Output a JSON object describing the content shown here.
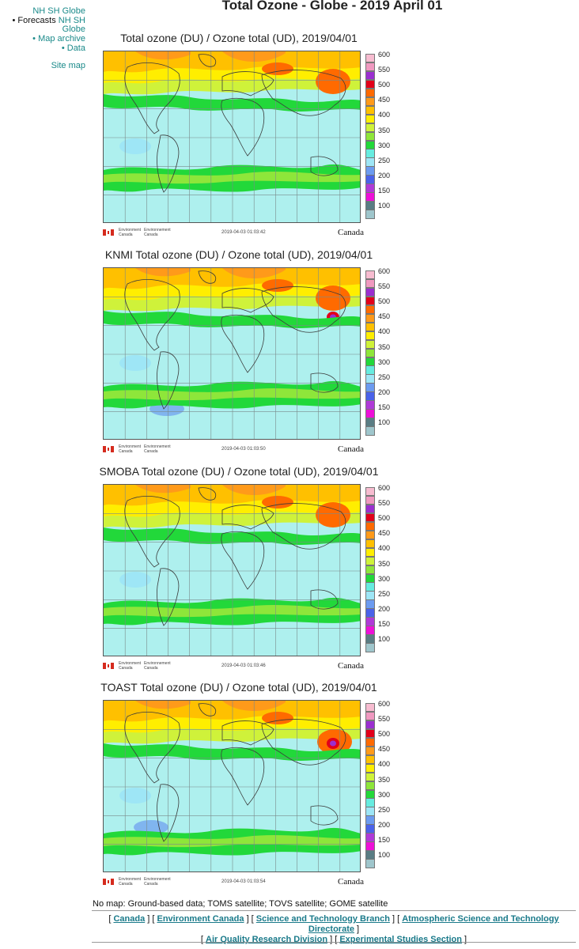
{
  "page": {
    "title": "Total Ozone - Globe - 2019 April 01"
  },
  "sidenav": {
    "hemispheres_top": "NH SH Globe",
    "forecasts_label": "Forecasts",
    "forecasts_links": "NH SH",
    "forecasts_globe": "Globe",
    "map_archive": "Map archive",
    "data": "Data",
    "site_map": "Site map"
  },
  "legend": {
    "labels": [
      "600",
      "550",
      "500",
      "450",
      "400",
      "350",
      "300",
      "250",
      "200",
      "150",
      "100"
    ],
    "colors": [
      "#f7bcd0",
      "#f099c0",
      "#9b2fd0",
      "#e2001a",
      "#ff6a00",
      "#ff9a1a",
      "#ffc000",
      "#ffee00",
      "#cff23a",
      "#8ee63a",
      "#22d83a",
      "#66ece0",
      "#9ee6f6",
      "#6c9bf0",
      "#4a62ea",
      "#b03ad8",
      "#ee10d8",
      "#5a7d84",
      "#9fc6cc"
    ]
  },
  "panels": [
    {
      "title": "Total ozone (DU) / Ozone total (UD), 2019/04/01",
      "timestamp": "2019-04-03 01:03:42"
    },
    {
      "title": "KNMI Total ozone (DU) / Ozone total (UD), 2019/04/01",
      "timestamp": "2019-04-03 01:03:50"
    },
    {
      "title": "SMOBA Total ozone (DU) / Ozone total (UD), 2019/04/01",
      "timestamp": "2019-04-03 01:03:46"
    },
    {
      "title": "TOAST Total ozone (DU) / Ozone total (UD), 2019/04/01",
      "timestamp": "2019-04-03 01:03:54"
    }
  ],
  "branding": {
    "env_en_1": "Environment",
    "env_en_2": "Canada",
    "env_fr_1": "Environnement",
    "env_fr_2": "Canada",
    "wordmark": "Canada"
  },
  "no_map_text": "No map: Ground-based data; TOMS satellite; TOVS satellite; GOME satellite",
  "footer": {
    "canada": "Canada",
    "environment_canada": "Environment Canada",
    "science_branch": "Science and Technology Branch",
    "atmospheric": "Atmospheric Science and Technology Directorate",
    "air_quality": "Air Quality Research Division",
    "experimental": "Experimental Studies Section"
  }
}
